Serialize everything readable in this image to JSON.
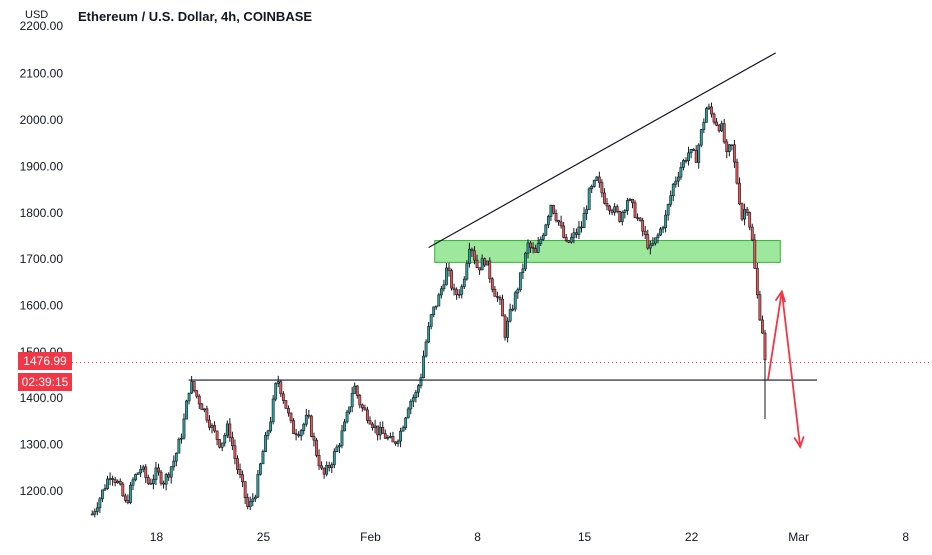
{
  "header": {
    "unit": "USD",
    "title": "Ethereum / U.S. Dollar, 4h, COINBASE"
  },
  "badges": {
    "last_price": "1476.99",
    "countdown": "02:39:15"
  },
  "colors": {
    "bull": "#26a69a",
    "bear": "#ef5350",
    "wick": "#131722",
    "zone_fill": "#7ee07e",
    "zone_stroke": "#2fb52f",
    "annotation_arrow": "#f23645",
    "trend_line": "#131722",
    "price_line": "#f23645"
  },
  "chart_data": {
    "type": "candlestick",
    "title": "Ethereum / U.S. Dollar, 4h, COINBASE",
    "ylabel": "USD",
    "ylim": [
      1150,
      2250
    ],
    "y_ticks": [
      "1200.00",
      "1300.00",
      "1400.00",
      "1500.00",
      "1600.00",
      "1700.00",
      "1800.00",
      "1900.00",
      "2000.00",
      "2100.00"
    ],
    "x_ticks": [
      {
        "label": "18",
        "day": 18
      },
      {
        "label": "25",
        "day": 25
      },
      {
        "label": "Feb",
        "day": 32
      },
      {
        "label": "8",
        "day": 39
      },
      {
        "label": "15",
        "day": 46
      },
      {
        "label": "22",
        "day": 53
      },
      {
        "label": "Mar",
        "day": 60
      },
      {
        "label": "8",
        "day": 67
      }
    ],
    "price_path": [
      [
        13.8,
        1150
      ],
      [
        14.3,
        1185
      ],
      [
        15.0,
        1240
      ],
      [
        15.5,
        1215
      ],
      [
        16.0,
        1170
      ],
      [
        16.5,
        1225
      ],
      [
        17.0,
        1250
      ],
      [
        17.5,
        1215
      ],
      [
        18.0,
        1240
      ],
      [
        18.5,
        1220
      ],
      [
        19.2,
        1270
      ],
      [
        19.7,
        1330
      ],
      [
        20.2,
        1435
      ],
      [
        20.7,
        1400
      ],
      [
        21.2,
        1370
      ],
      [
        21.7,
        1330
      ],
      [
        22.2,
        1300
      ],
      [
        22.7,
        1340
      ],
      [
        23.2,
        1260
      ],
      [
        23.7,
        1200
      ],
      [
        24.0,
        1160
      ],
      [
        24.5,
        1200
      ],
      [
        25.0,
        1290
      ],
      [
        25.5,
        1360
      ],
      [
        25.9,
        1445
      ],
      [
        26.4,
        1390
      ],
      [
        26.9,
        1330
      ],
      [
        27.4,
        1330
      ],
      [
        27.9,
        1360
      ],
      [
        28.4,
        1290
      ],
      [
        28.9,
        1230
      ],
      [
        29.4,
        1260
      ],
      [
        29.9,
        1300
      ],
      [
        30.4,
        1350
      ],
      [
        30.9,
        1430
      ],
      [
        31.4,
        1380
      ],
      [
        31.9,
        1360
      ],
      [
        32.4,
        1330
      ],
      [
        32.9,
        1320
      ],
      [
        33.5,
        1300
      ],
      [
        34.0,
        1330
      ],
      [
        34.5,
        1390
      ],
      [
        35.0,
        1410
      ],
      [
        35.3,
        1450
      ],
      [
        35.5,
        1500
      ],
      [
        36.0,
        1580
      ],
      [
        36.5,
        1620
      ],
      [
        37.0,
        1680
      ],
      [
        37.5,
        1620
      ],
      [
        38.0,
        1640
      ],
      [
        38.5,
        1740
      ],
      [
        39.0,
        1680
      ],
      [
        39.5,
        1700
      ],
      [
        40.0,
        1640
      ],
      [
        40.5,
        1600
      ],
      [
        40.8,
        1540
      ],
      [
        41.3,
        1600
      ],
      [
        41.8,
        1660
      ],
      [
        42.3,
        1730
      ],
      [
        42.8,
        1710
      ],
      [
        43.3,
        1760
      ],
      [
        43.8,
        1820
      ],
      [
        44.3,
        1780
      ],
      [
        44.8,
        1730
      ],
      [
        45.3,
        1750
      ],
      [
        45.8,
        1770
      ],
      [
        46.3,
        1840
      ],
      [
        46.8,
        1870
      ],
      [
        47.3,
        1830
      ],
      [
        47.8,
        1810
      ],
      [
        48.3,
        1790
      ],
      [
        48.8,
        1830
      ],
      [
        49.3,
        1800
      ],
      [
        49.8,
        1760
      ],
      [
        50.3,
        1720
      ],
      [
        50.8,
        1750
      ],
      [
        51.3,
        1790
      ],
      [
        51.8,
        1860
      ],
      [
        52.3,
        1900
      ],
      [
        52.8,
        1930
      ],
      [
        53.3,
        1920
      ],
      [
        53.8,
        2000
      ],
      [
        54.0,
        2030
      ],
      [
        54.5,
        2000
      ],
      [
        55.0,
        1980
      ],
      [
        55.3,
        1920
      ],
      [
        55.6,
        1950
      ],
      [
        56.0,
        1860
      ],
      [
        56.3,
        1790
      ],
      [
        56.6,
        1820
      ],
      [
        57.0,
        1730
      ],
      [
        57.2,
        1650
      ],
      [
        57.4,
        1590
      ],
      [
        57.6,
        1560
      ],
      [
        57.8,
        1476.99
      ]
    ],
    "trend_lines": [
      {
        "name": "rising resistance",
        "from": [
          35.8,
          1725
        ],
        "to": [
          58.5,
          2145
        ]
      },
      {
        "name": "support",
        "from": [
          20.1,
          1439
        ],
        "to": [
          61.2,
          1439
        ]
      }
    ],
    "zones": [
      {
        "x0": 36.2,
        "x1": 58.8,
        "y0": 1693,
        "y1": 1740
      }
    ],
    "last_price": 1476.99,
    "projection": {
      "up_start": [
        58.0,
        1440
      ],
      "up_end": [
        58.9,
        1630
      ],
      "down_start": [
        58.9,
        1630
      ],
      "down_end": [
        60.1,
        1295
      ]
    },
    "grid": false,
    "legend": "none"
  }
}
